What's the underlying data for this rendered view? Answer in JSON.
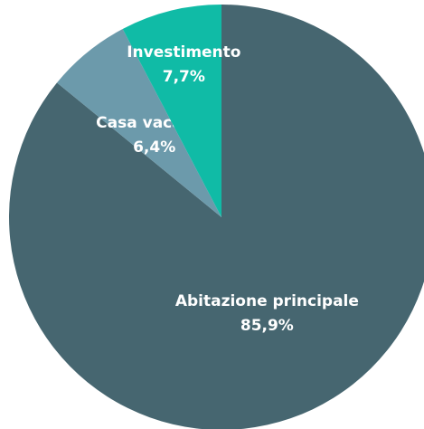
{
  "chart_data": {
    "type": "pie",
    "categories": [
      "Abitazione principale",
      "Casa vacanza",
      "Investimento"
    ],
    "values": [
      85.9,
      6.4,
      7.7
    ],
    "value_labels": [
      "85,9%",
      "6,4%",
      "7,7%"
    ],
    "colors": [
      "#466670",
      "#6c9aab",
      "#10bba6"
    ]
  }
}
